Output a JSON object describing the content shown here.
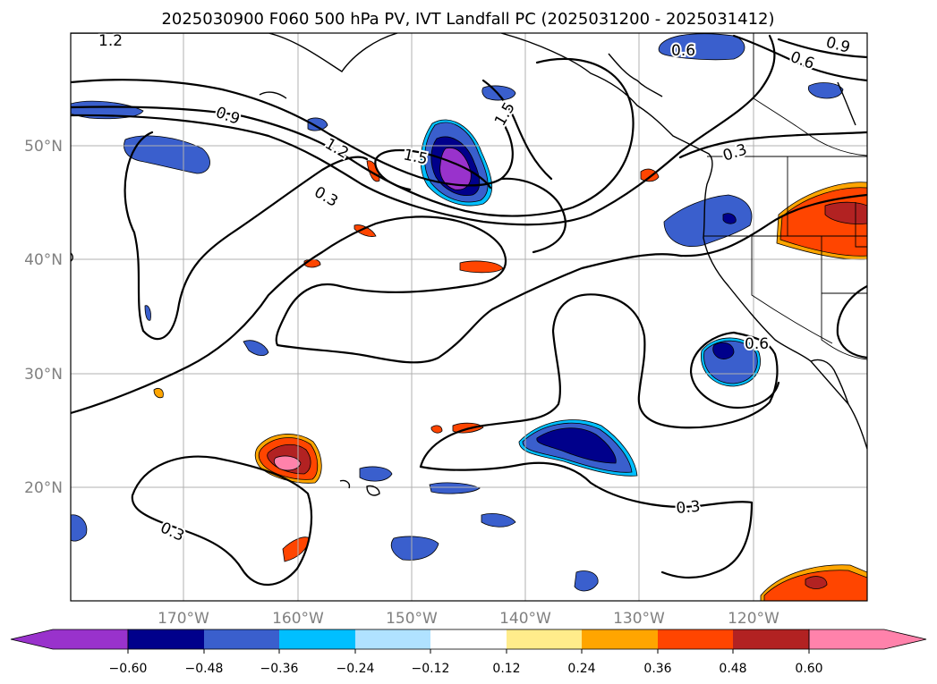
{
  "title": "2025030900 F060 500 hPa PV, IVT Landfall PC (2025031200 - 2025031412)",
  "map": {
    "lon_labels": [
      "170°W",
      "160°W",
      "150°W",
      "140°W",
      "130°W",
      "120°W"
    ],
    "lat_labels": [
      "50°N",
      "40°N",
      "30°N",
      "20°N"
    ],
    "contour_labels": [
      "1.2",
      "0.9",
      "1.2",
      "0.3",
      "1.5",
      "1.5",
      "0.6",
      "0.6",
      "0.9",
      "0.3",
      "0.6",
      "0.3",
      "0.3"
    ],
    "grid": true
  },
  "colorbar": {
    "colors": [
      "#9932CC",
      "#00008B",
      "#3A5FCD",
      "#00BFFF",
      "#B0E2FF",
      "#FFFFFF",
      "#FFEC8B",
      "#FFA500",
      "#FF4500",
      "#B22222",
      "#FF82AB"
    ],
    "tick_labels": [
      "−0.60",
      "−0.48",
      "−0.36",
      "−0.24",
      "−0.12",
      "0.12",
      "0.24",
      "0.36",
      "0.48",
      "0.60"
    ],
    "extend": "both"
  }
}
